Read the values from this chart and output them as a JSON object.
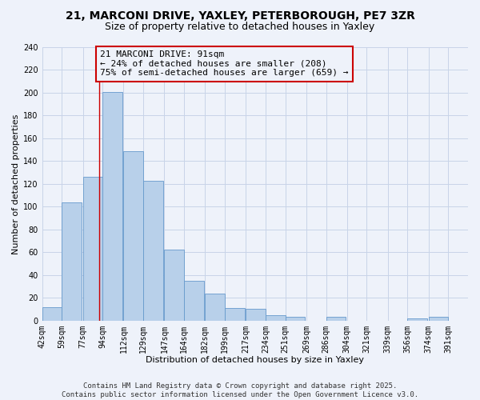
{
  "title": "21, MARCONI DRIVE, YAXLEY, PETERBOROUGH, PE7 3ZR",
  "subtitle": "Size of property relative to detached houses in Yaxley",
  "xlabel": "Distribution of detached houses by size in Yaxley",
  "ylabel": "Number of detached properties",
  "bar_left_edges": [
    42,
    59,
    77,
    94,
    112,
    129,
    147,
    164,
    182,
    199,
    217,
    234,
    251,
    269,
    286,
    304,
    321,
    339,
    356,
    374
  ],
  "bar_heights": [
    12,
    104,
    126,
    201,
    149,
    123,
    62,
    35,
    24,
    11,
    10,
    5,
    3,
    0,
    3,
    0,
    0,
    0,
    2,
    3
  ],
  "bin_width": 17,
  "tick_labels": [
    "42sqm",
    "59sqm",
    "77sqm",
    "94sqm",
    "112sqm",
    "129sqm",
    "147sqm",
    "164sqm",
    "182sqm",
    "199sqm",
    "217sqm",
    "234sqm",
    "251sqm",
    "269sqm",
    "286sqm",
    "304sqm",
    "321sqm",
    "339sqm",
    "356sqm",
    "374sqm",
    "391sqm"
  ],
  "tick_positions": [
    42,
    59,
    77,
    94,
    112,
    129,
    147,
    164,
    182,
    199,
    217,
    234,
    251,
    269,
    286,
    304,
    321,
    339,
    356,
    374,
    391
  ],
  "bar_color": "#b8d0ea",
  "bar_edge_color": "#6699cc",
  "grid_color": "#c8d4e8",
  "background_color": "#eef2fa",
  "vline_x": 91,
  "vline_color": "#cc0000",
  "annotation_text": "21 MARCONI DRIVE: 91sqm\n← 24% of detached houses are smaller (208)\n75% of semi-detached houses are larger (659) →",
  "annotation_box_edge": "#cc0000",
  "ylim": [
    0,
    240
  ],
  "yticks": [
    0,
    20,
    40,
    60,
    80,
    100,
    120,
    140,
    160,
    180,
    200,
    220,
    240
  ],
  "xmin": 42,
  "xmax": 408,
  "footer_text": "Contains HM Land Registry data © Crown copyright and database right 2025.\nContains public sector information licensed under the Open Government Licence v3.0.",
  "title_fontsize": 10,
  "subtitle_fontsize": 9,
  "axis_label_fontsize": 8,
  "tick_fontsize": 7,
  "annotation_fontsize": 8,
  "footer_fontsize": 6.5
}
